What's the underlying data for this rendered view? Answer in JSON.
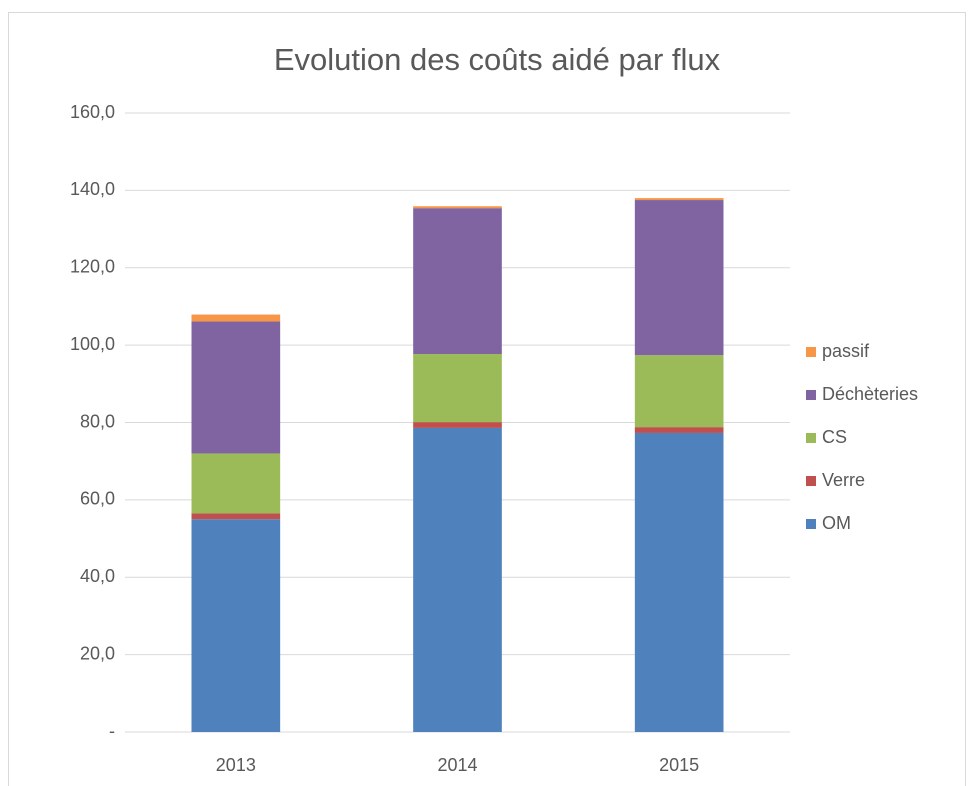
{
  "chart_data": {
    "type": "stacked_bar",
    "title": "Evolution des coûts aidé par flux",
    "categories": [
      "2013",
      "2014",
      "2015"
    ],
    "series": [
      {
        "name": "OM",
        "color": "#4f81bd",
        "values": [
          55.0,
          78.6,
          77.3
        ]
      },
      {
        "name": "Verre",
        "color": "#c0504d",
        "values": [
          1.5,
          1.5,
          1.5
        ]
      },
      {
        "name": "CS",
        "color": "#9bbb59",
        "values": [
          15.5,
          17.6,
          18.6
        ]
      },
      {
        "name": "Déchèteries",
        "color": "#8064a2",
        "values": [
          34.1,
          37.7,
          40.1
        ]
      },
      {
        "name": "passif",
        "color": "#f79646",
        "values": [
          1.8,
          0.5,
          0.5
        ]
      }
    ],
    "ylim": [
      0,
      160
    ],
    "yticks": [
      {
        "value": 0,
        "label": "-"
      },
      {
        "value": 20,
        "label": "20,0"
      },
      {
        "value": 40,
        "label": "40,0"
      },
      {
        "value": 60,
        "label": "60,0"
      },
      {
        "value": 80,
        "label": "80,0"
      },
      {
        "value": 100,
        "label": "100,0"
      },
      {
        "value": 120,
        "label": "120,0"
      },
      {
        "value": 140,
        "label": "140,0"
      },
      {
        "value": 160,
        "label": "160,0"
      }
    ],
    "grid": true,
    "legend": "right"
  }
}
